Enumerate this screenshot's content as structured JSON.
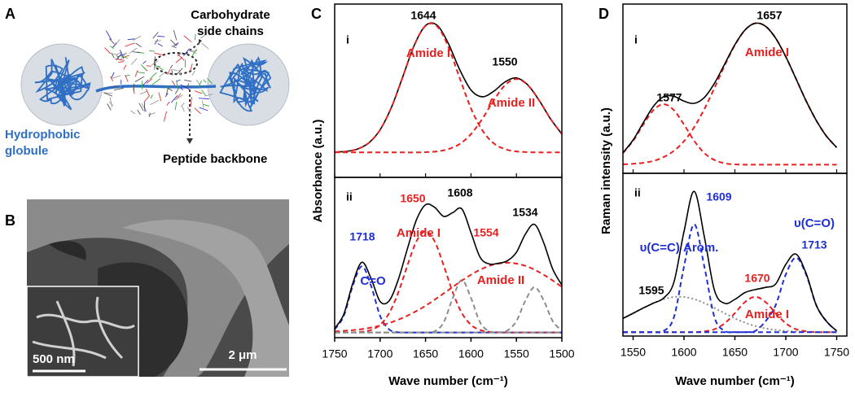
{
  "panel_labels": [
    "A",
    "B",
    "C",
    "D"
  ],
  "schematic": {
    "side_chain_label": [
      "Carbohydrate",
      "side chains"
    ],
    "globule_label": [
      "Hydrophobic",
      "globule"
    ],
    "backbone_label": "Peptide backbone"
  },
  "micrograph": {
    "inset_scale": "500 nm",
    "scale": "2 μm"
  },
  "chart_data": [
    {
      "type": "line",
      "panel": "i",
      "ylabel": "Absorbance (a.u.)",
      "x": [
        1750,
        1737.5,
        1725,
        1712.5,
        1700,
        1687.5,
        1675,
        1662.5,
        1650,
        1637.5,
        1625,
        1612.5,
        1600,
        1587.5,
        1575,
        1562.5,
        1550,
        1537.5,
        1525,
        1512.5,
        1500
      ],
      "xlim": [
        1750,
        1500
      ],
      "ylim": [
        -14,
        104
      ],
      "series": [
        {
          "color": "#000000",
          "dash": "solid",
          "values": [
            3.2,
            3.7,
            5.3,
            9.5,
            18.4,
            33.8,
            54.6,
            75.8,
            89.4,
            89.7,
            77.3,
            59.4,
            45.5,
            40.9,
            44.6,
            51.0,
            53.7,
            49.0,
            38.4,
            25.9,
            15.5
          ]
        },
        {
          "color": "#e8201f",
          "dash": "dashed",
          "values": [
            3.2,
            3.7,
            5.3,
            9.5,
            18.4,
            33.8,
            54.6,
            75.8,
            89.2,
            89.0,
            75.1,
            53.7,
            33.0,
            18.0,
            9.2,
            5.2,
            3.7,
            3.2,
            3,
            3,
            3
          ]
        },
        {
          "color": "#e8201f",
          "dash": "dashed",
          "values": [
            3,
            3,
            3,
            3,
            3,
            3,
            3,
            3,
            3.2,
            3.7,
            5.2,
            8.7,
            15.5,
            25.9,
            38.4,
            48.8,
            53,
            48.8,
            38.4,
            25.9,
            15.5
          ]
        }
      ],
      "annotations": [
        {
          "text": "1644",
          "color": "#000000"
        },
        {
          "text": "Amide I",
          "color": "#e8201f"
        },
        {
          "text": "1550",
          "color": "#000000"
        },
        {
          "text": "Amide II",
          "color": "#e8201f"
        }
      ]
    },
    {
      "type": "line",
      "panel": "ii",
      "xlabel": "Wave number (cm⁻¹)",
      "x": [
        1750,
        1740,
        1730,
        1720,
        1710,
        1700,
        1690,
        1680,
        1670,
        1660,
        1650,
        1640,
        1630,
        1620,
        1610,
        1600,
        1590,
        1580,
        1570,
        1560,
        1550,
        1540,
        1530,
        1520,
        1510,
        1500
      ],
      "xlim": [
        1750,
        1500
      ],
      "ylim": [
        0,
        92
      ],
      "xticks": [
        1750,
        1700,
        1650,
        1600,
        1550,
        1500
      ],
      "series": [
        {
          "color": "#8c8c8c",
          "dash": "dotted",
          "values": [
            3,
            3,
            3,
            3,
            3,
            3,
            3,
            3,
            3,
            3,
            3,
            3,
            3,
            3,
            3,
            3,
            3,
            3,
            3,
            3,
            3,
            3,
            3,
            3,
            3,
            3
          ]
        },
        {
          "color": "#1f2fd6",
          "dash": "dashed",
          "values": [
            4.7,
            12.5,
            29.9,
            41,
            29.9,
            12.5,
            4.7,
            3.1,
            3,
            3,
            3,
            3,
            3,
            3,
            3,
            3,
            3,
            3,
            3,
            3,
            3,
            3,
            3,
            3,
            3,
            3
          ]
        },
        {
          "color": "#e8201f",
          "dash": "dashed",
          "values": [
            3,
            3,
            3.1,
            3.4,
            4.4,
            7.4,
            14.1,
            25.9,
            41.4,
            55.3,
            61,
            55.3,
            41.4,
            25.9,
            14.1,
            7.4,
            4.4,
            3.4,
            3.1,
            3,
            3,
            3,
            3,
            3,
            3,
            3
          ]
        },
        {
          "color": "#e8201f",
          "dash": "dashed",
          "values": [
            3.6,
            3.9,
            4.3,
            4.9,
            5.8,
            6.9,
            8.4,
            10.3,
            12.6,
            15.3,
            18.3,
            21.8,
            25.4,
            29.1,
            32.8,
            36.1,
            39,
            41.2,
            42.5,
            43,
            42.5,
            41.2,
            39,
            36.1,
            32.8,
            29.1
          ]
        },
        {
          "color": "#8c8c8c",
          "dash": "dashed",
          "values": [
            3,
            3,
            3,
            3,
            3,
            3,
            3,
            3,
            3,
            3,
            3,
            3.7,
            8.8,
            22.8,
            33,
            22.8,
            8.8,
            3.7,
            3,
            3,
            3,
            3,
            3,
            3,
            3,
            3
          ]
        },
        {
          "color": "#8c8c8c",
          "dash": "dashed",
          "values": [
            3,
            3,
            3,
            3,
            3,
            3,
            3,
            3,
            3,
            3,
            3,
            3,
            3,
            3,
            3,
            3,
            3,
            3,
            3.1,
            4.1,
            9.5,
            21.4,
            29,
            21.4,
            9.5,
            4.1
          ]
        },
        {
          "color": "#000000",
          "dash": "solid",
          "values": [
            5.3,
            13.4,
            31.3,
            43.3,
            34.1,
            20.8,
            21.2,
            33.3,
            51,
            67.6,
            76.3,
            74.8,
            69.6,
            71.8,
            73.9,
            60.3,
            46.2,
            42.3,
            42.7,
            44.1,
            49,
            59.6,
            65,
            54.5,
            39.3,
            30.2
          ]
        }
      ],
      "annotations": [
        {
          "text": "1650",
          "color": "#e8201f"
        },
        {
          "text": "1608",
          "color": "#000000"
        },
        {
          "text": "1534",
          "color": "#000000"
        },
        {
          "text": "1718",
          "color": "#1f2fd6"
        },
        {
          "text": "Amide I",
          "color": "#e8201f"
        },
        {
          "text": "1554",
          "color": "#e8201f"
        },
        {
          "text": "C=O",
          "color": "#1f2fd6"
        },
        {
          "text": "Amide II",
          "color": "#e8201f"
        }
      ]
    },
    {
      "type": "line",
      "panel": "i",
      "ylabel": "Raman intensity (a.u.)",
      "x": [
        1540,
        1550,
        1560,
        1570,
        1580,
        1590,
        1600,
        1610,
        1620,
        1630,
        1640,
        1650,
        1660,
        1670,
        1680,
        1690,
        1700,
        1710,
        1720,
        1730,
        1740,
        1750
      ],
      "xlim": [
        1540,
        1760
      ],
      "ylim": [
        -2,
        96
      ],
      "series": [
        {
          "color": "#e8201f",
          "dash": "dashed",
          "values": [
            9.7,
            16.8,
            26.2,
            34.6,
            38,
            34.6,
            26.2,
            16.8,
            9.7,
            5.7,
            3.8,
            3.2,
            3,
            3,
            3,
            3,
            3,
            3,
            3,
            3,
            3,
            3
          ]
        },
        {
          "color": "#e8201f",
          "dash": "dashed",
          "values": [
            3.2,
            3.5,
            4.1,
            5.2,
            7.4,
            11,
            16.6,
            24.7,
            35.2,
            47.5,
            60.5,
            72.3,
            81,
            84.9,
            83.2,
            76.3,
            65.5,
            52.8,
            39.9,
            28.6,
            19.5,
            13
          ]
        },
        {
          "color": "#000000",
          "dash": "solid",
          "values": [
            9.9,
            17.3,
            27.3,
            36.8,
            42.4,
            42.6,
            39.8,
            38.5,
            41.9,
            50.2,
            61.3,
            72.5,
            81,
            84.9,
            83.2,
            76.3,
            65.5,
            52.8,
            39.9,
            28.6,
            19.5,
            13
          ]
        }
      ],
      "annotations": [
        {
          "text": "1657",
          "color": "#000000"
        },
        {
          "text": "1577",
          "color": "#000000"
        },
        {
          "text": "Amide I",
          "color": "#e8201f"
        }
      ]
    },
    {
      "type": "line",
      "panel": "ii",
      "xlabel": "Wave number (cm⁻¹)",
      "x": [
        1540,
        1550,
        1560,
        1570,
        1580,
        1590,
        1600,
        1610,
        1620,
        1630,
        1640,
        1650,
        1660,
        1670,
        1680,
        1690,
        1700,
        1710,
        1720,
        1730,
        1740,
        1750
      ],
      "xlim": [
        1540,
        1760
      ],
      "ylim": [
        0,
        83
      ],
      "xticks": [
        1550,
        1600,
        1650,
        1700,
        1750
      ],
      "series": [
        {
          "color": "#8c8c8c",
          "dash": "dotted",
          "values": [
            9,
            11.6,
            14.3,
            16.8,
            18.8,
            19.9,
            19.9,
            18.8,
            16.8,
            14.3,
            11.6,
            9,
            6.8,
            5.1,
            3.9,
            3.1,
            2.6,
            2.3,
            2.1,
            2,
            2,
            2
          ]
        },
        {
          "color": "#e8201f",
          "dash": "dashed",
          "values": [
            2,
            2,
            2,
            2,
            2,
            2,
            2,
            2,
            2.4,
            3.5,
            6.5,
            11.7,
            17.4,
            20,
            17.4,
            11.7,
            6.5,
            3.5,
            2.4,
            2,
            2,
            2
          ]
        },
        {
          "color": "#1f2fd6",
          "dash": "dashed",
          "values": [
            2,
            2,
            2,
            2,
            2.6,
            9.4,
            35.4,
            57,
            35.4,
            9.4,
            2.6,
            2,
            2,
            2,
            2,
            2,
            2,
            2,
            2,
            2,
            2,
            2
          ]
        },
        {
          "color": "#1f2fd6",
          "dash": "dashed",
          "values": [
            2,
            2,
            2,
            2,
            2,
            2,
            2,
            2,
            2,
            2,
            2,
            2,
            2,
            2.6,
            7.5,
            15.7,
            31.4,
            40,
            31.4,
            15.7,
            7.5,
            2.6
          ]
        },
        {
          "color": "#000000",
          "dash": "solid",
          "values": [
            9,
            11.6,
            14.3,
            16.8,
            19.4,
            27.3,
            53.3,
            73.8,
            50.6,
            23.2,
            16.7,
            18.7,
            22.2,
            23.7,
            24.8,
            26.5,
            36.5,
            41.8,
            31.9,
            15.7,
            7.5,
            2.6
          ]
        }
      ],
      "annotations": [
        {
          "text": "1609",
          "color": "#1f2fd6"
        },
        {
          "text": "υ(C=O)",
          "color": "#1f2fd6"
        },
        {
          "text": "1713",
          "color": "#1f2fd6"
        },
        {
          "text": "υ(C=C) Arom.",
          "color": "#1f2fd6"
        },
        {
          "text": "1670",
          "color": "#e8201f"
        },
        {
          "text": "1595",
          "color": "#000000"
        },
        {
          "text": "Amide I",
          "color": "#e8201f"
        }
      ]
    }
  ]
}
